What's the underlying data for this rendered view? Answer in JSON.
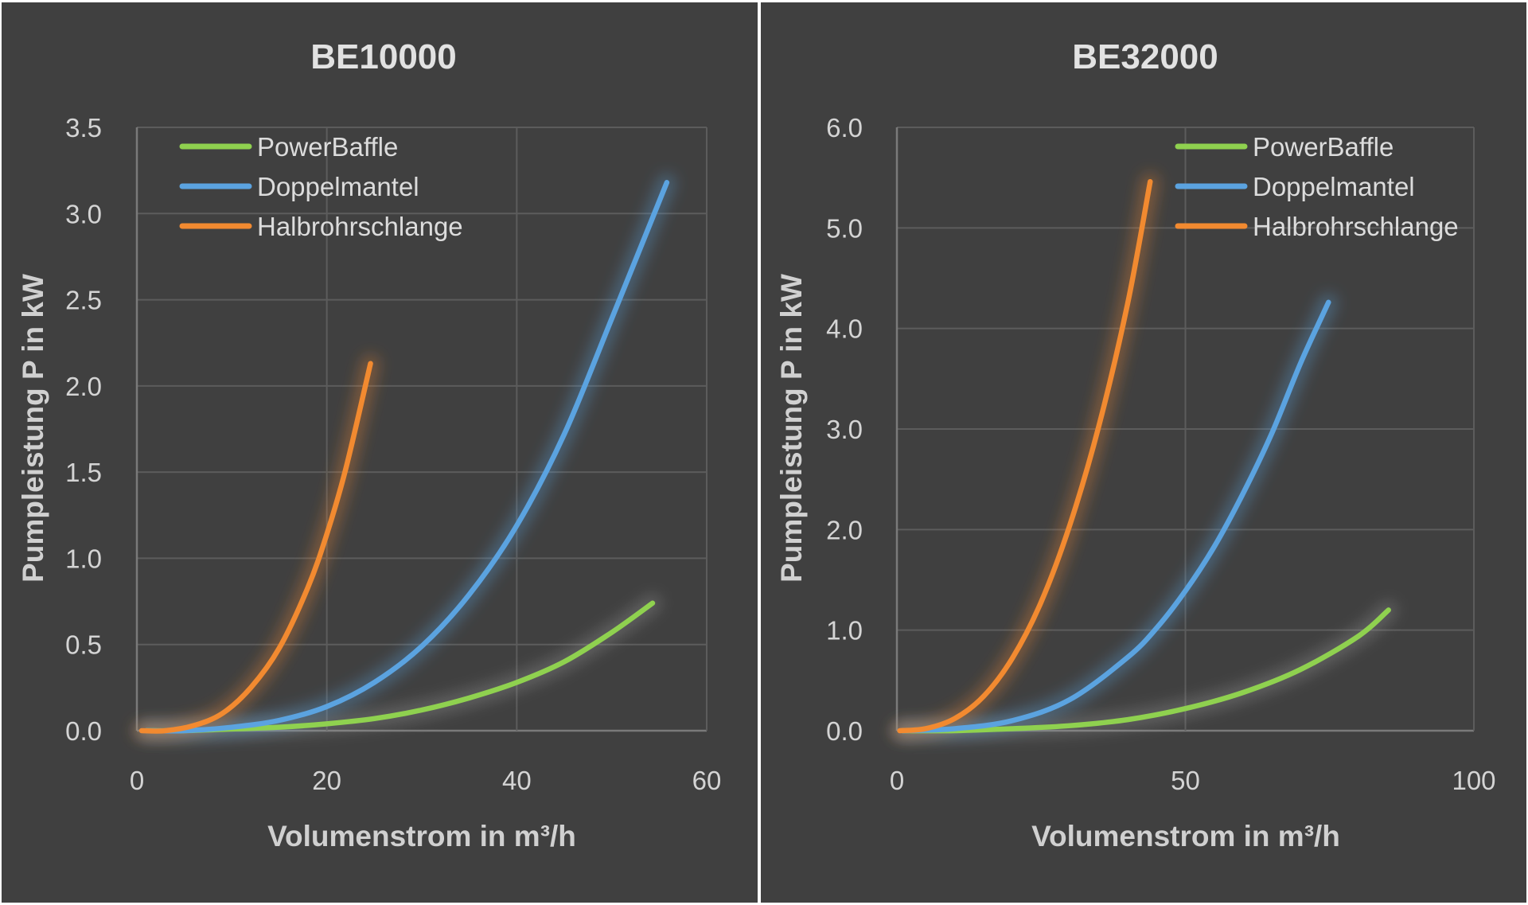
{
  "colors": {
    "background": "#404040",
    "PowerBaffle": "#8fd14f",
    "Doppelmantel": "#5ba3e0",
    "Halbrohrschlange": "#f28a30"
  },
  "chart_data": [
    {
      "type": "line",
      "title": "BE10000",
      "xlabel": "Volumenstrom in m³/h",
      "ylabel": "Pumpleistung P in kW",
      "xlim": [
        0,
        60
      ],
      "ylim": [
        0,
        3.5
      ],
      "xticks": [
        "0",
        "20",
        "40",
        "60"
      ],
      "xtick_values": [
        0,
        20,
        40,
        60
      ],
      "yticks": [
        "0.0",
        "0.5",
        "1.0",
        "1.5",
        "2.0",
        "2.5",
        "3.0",
        "3.5"
      ],
      "ytick_values": [
        0,
        0.5,
        1.0,
        1.5,
        2.0,
        2.5,
        3.0,
        3.5
      ],
      "grid": true,
      "legend_position": "top-left",
      "legend": [
        "PowerBaffle",
        "Doppelmantel",
        "Halbrohrschlange"
      ],
      "series": [
        {
          "name": "PowerBaffle",
          "x": [
            1,
            5,
            10,
            15,
            20,
            25,
            30,
            35,
            40,
            45,
            50,
            54.3
          ],
          "y": [
            0.0,
            0.0,
            0.01,
            0.02,
            0.04,
            0.07,
            0.12,
            0.19,
            0.28,
            0.4,
            0.57,
            0.74
          ]
        },
        {
          "name": "Doppelmantel",
          "x": [
            1,
            5,
            10,
            15,
            20,
            25,
            30,
            35,
            40,
            45,
            50,
            55.8
          ],
          "y": [
            0.0,
            0.0,
            0.02,
            0.06,
            0.14,
            0.28,
            0.49,
            0.79,
            1.19,
            1.72,
            2.39,
            3.18
          ]
        },
        {
          "name": "Halbrohrschlange",
          "x": [
            0.5,
            3,
            6,
            9,
            12,
            15,
            18,
            20,
            22,
            24.6
          ],
          "y": [
            0.0,
            0.0,
            0.03,
            0.1,
            0.25,
            0.48,
            0.83,
            1.14,
            1.52,
            2.13
          ]
        }
      ]
    },
    {
      "type": "line",
      "title": "BE32000",
      "xlabel": "Volumenstrom in m³/h",
      "ylabel": "Pumpleistung P in kW",
      "xlim": [
        0,
        100
      ],
      "ylim": [
        0,
        6.0
      ],
      "xticks": [
        "0",
        "50",
        "100"
      ],
      "xtick_values": [
        0,
        50,
        100
      ],
      "yticks": [
        "0.0",
        "1.0",
        "2.0",
        "3.0",
        "4.0",
        "5.0",
        "6.0"
      ],
      "ytick_values": [
        0,
        1,
        2,
        3,
        4,
        5,
        6
      ],
      "grid": true,
      "legend_position": "top-right",
      "legend": [
        "PowerBaffle",
        "Doppelmantel",
        "Halbrohrschlange"
      ],
      "series": [
        {
          "name": "PowerBaffle",
          "x": [
            1,
            10,
            20,
            30,
            40,
            50,
            60,
            70,
            80,
            85.2
          ],
          "y": [
            0.0,
            0.0,
            0.02,
            0.05,
            0.11,
            0.22,
            0.38,
            0.61,
            0.94,
            1.2
          ]
        },
        {
          "name": "Doppelmantel",
          "x": [
            1,
            10,
            20,
            30,
            40,
            45,
            50,
            55,
            60,
            65,
            70,
            74.8
          ],
          "y": [
            0.0,
            0.02,
            0.1,
            0.31,
            0.73,
            1.02,
            1.39,
            1.83,
            2.36,
            2.96,
            3.66,
            4.26
          ]
        },
        {
          "name": "Halbrohrschlange",
          "x": [
            0.5,
            5,
            10,
            15,
            20,
            25,
            30,
            35,
            40,
            43.9
          ],
          "y": [
            0.0,
            0.02,
            0.12,
            0.34,
            0.72,
            1.28,
            2.05,
            3.03,
            4.25,
            5.46
          ]
        }
      ]
    }
  ]
}
